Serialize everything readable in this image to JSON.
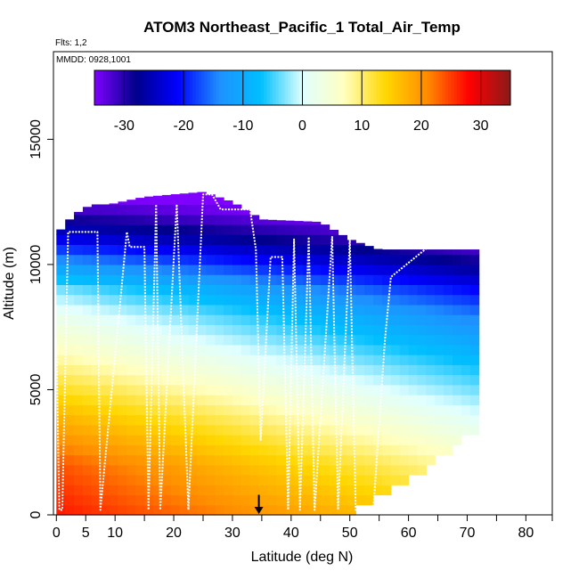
{
  "chart_data": {
    "type": "heatmap",
    "title": "ATOM3 Northeast_Pacific_1 Total_Air_Temp",
    "flights_note": "Flts: 1,2",
    "dates_note": "MMDD: 0928,1001",
    "xlabel": "Latitude (deg N)",
    "ylabel": "Altitude (m)",
    "xlim": [
      -0.5,
      84.5
    ],
    "ylim": [
      0,
      18500
    ],
    "x_ticks": [
      0,
      5,
      10,
      20,
      30,
      40,
      50,
      60,
      70,
      80
    ],
    "x_minor_ticks": [
      15,
      25,
      35,
      45,
      55,
      65,
      75,
      85
    ],
    "y_ticks": [
      0,
      5000,
      10000,
      15000
    ],
    "colorbar": {
      "min": -35,
      "max": 35,
      "ticks": [
        -30,
        -20,
        -10,
        0,
        10,
        20,
        30
      ],
      "colors": [
        "#7f00ff",
        "#00008b",
        "#0000ff",
        "#1e90ff",
        "#00bfff",
        "#e0ffff",
        "#ffffc0",
        "#ffd700",
        "#ff8c00",
        "#ff0000",
        "#8b1a1a"
      ]
    },
    "temperature_profile": {
      "altitude": [
        0,
        2000,
        4000,
        6000,
        8000,
        9000,
        10000,
        11000,
        12000,
        13000
      ],
      "temp_south": [
        27,
        24,
        17,
        9,
        2,
        -3,
        -12,
        -22,
        -30,
        -36
      ],
      "temp_north": [
        13,
        7,
        0,
        -7,
        -15,
        -21,
        -28,
        -34,
        -38,
        -40
      ]
    },
    "data_extent": {
      "lat": [
        0,
        3,
        6,
        9,
        15,
        25,
        30,
        35,
        45,
        50,
        55,
        60,
        65,
        70,
        72
      ],
      "top_altitude": [
        11200,
        12000,
        12400,
        12400,
        12700,
        12900,
        12500,
        11800,
        11700,
        11000,
        10600,
        10600,
        10600,
        10600,
        10600
      ],
      "bottom_altitude": [
        0,
        0,
        0,
        0,
        0,
        0,
        0,
        0,
        0,
        0,
        700,
        1300,
        2200,
        3300,
        3300
      ]
    },
    "flight_track": {
      "lat": [
        0,
        0.5,
        1,
        2,
        7,
        7.5,
        12,
        12.5,
        15,
        15.7,
        17,
        17.7,
        20.5,
        22.5,
        25,
        26.5,
        28,
        33,
        34,
        34.8,
        36.5,
        38.5,
        39.5,
        40.5,
        41.5,
        43,
        44,
        47,
        48,
        50,
        51,
        54,
        56,
        57,
        66,
        70
      ],
      "alt": [
        7000,
        200,
        200,
        11300,
        11300,
        200,
        11300,
        10700,
        10700,
        200,
        12400,
        200,
        12400,
        200,
        12800,
        12800,
        12200,
        12200,
        10600,
        3000,
        10300,
        10300,
        200,
        11000,
        200,
        11100,
        200,
        11100,
        200,
        11000,
        200,
        200,
        7000,
        9500,
        11200,
        11000
      ]
    },
    "marker": {
      "lat": 34.5,
      "alt_top": 800,
      "alt_bottom": 0
    }
  }
}
